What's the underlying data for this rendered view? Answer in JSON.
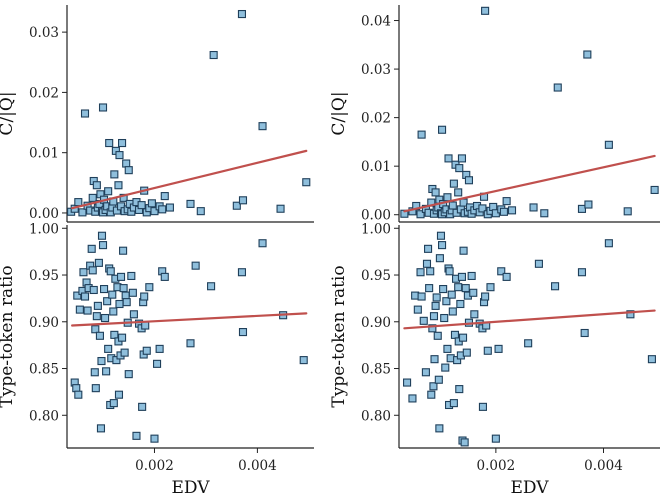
{
  "colors": {
    "marker_fill": "#8fbfdc",
    "marker_edge": "#1f3f5a",
    "fit_line": "#c0504d",
    "axis": "#222222"
  },
  "chart_data": [
    {
      "id": "top-left",
      "type": "scatter",
      "xlabel": "",
      "ylabel": "C/|Q|",
      "xlim": [
        0.0003,
        0.0051
      ],
      "ylim": [
        -0.0015,
        0.0345
      ],
      "xticks": [],
      "xtick_labels": [],
      "yticks": [
        0.0,
        0.01,
        0.02,
        0.03
      ],
      "ytick_labels": [
        "0.00",
        "0.01",
        "0.02",
        "0.03"
      ],
      "points": [
        [
          0.00038,
          0.0002
        ],
        [
          0.00045,
          0.0007
        ],
        [
          0.00052,
          0.0018
        ],
        [
          0.0006,
          0.0001
        ],
        [
          0.00065,
          0.0165
        ],
        [
          0.0007,
          0.0012
        ],
        [
          0.00075,
          0.0004
        ],
        [
          0.0008,
          0.0025
        ],
        [
          0.00082,
          0.0053
        ],
        [
          0.00085,
          0.0002
        ],
        [
          0.00088,
          0.0046
        ],
        [
          0.0009,
          0.0009
        ],
        [
          0.00093,
          0.0015
        ],
        [
          0.00095,
          0.0031
        ],
        [
          0.00098,
          0.0003
        ],
        [
          0.001,
          0.0001
        ],
        [
          0.001,
          0.0175
        ],
        [
          0.00102,
          0.0022
        ],
        [
          0.00105,
          0.0005
        ],
        [
          0.00108,
          0.0011
        ],
        [
          0.0011,
          0.0036
        ],
        [
          0.00112,
          0.0116
        ],
        [
          0.00115,
          0.0001
        ],
        [
          0.00118,
          0.0009
        ],
        [
          0.0012,
          0.0019
        ],
        [
          0.00122,
          0.0064
        ],
        [
          0.00125,
          0.0103
        ],
        [
          0.00127,
          0.0004
        ],
        [
          0.0013,
          0.0046
        ],
        [
          0.00132,
          0.0096
        ],
        [
          0.00135,
          0.0011
        ],
        [
          0.00137,
          0.0116
        ],
        [
          0.0014,
          0.0025
        ],
        [
          0.00142,
          0.0003
        ],
        [
          0.00145,
          0.0082
        ],
        [
          0.00148,
          0.0006
        ],
        [
          0.0015,
          0.0071
        ],
        [
          0.00152,
          0.0015
        ],
        [
          0.00155,
          0.0002
        ],
        [
          0.0016,
          0.0009
        ],
        [
          0.00165,
          0.0018
        ],
        [
          0.0017,
          0.0005
        ],
        [
          0.00175,
          0.0013
        ],
        [
          0.0018,
          0.0037
        ],
        [
          0.00185,
          0.0001
        ],
        [
          0.0019,
          0.0008
        ],
        [
          0.00195,
          0.0016
        ],
        [
          0.002,
          0.0003
        ],
        [
          0.0021,
          0.0011
        ],
        [
          0.00215,
          0.0006
        ],
        [
          0.0022,
          0.0028
        ],
        [
          0.0023,
          0.0009
        ],
        [
          0.0027,
          0.0015
        ],
        [
          0.0029,
          0.0003
        ],
        [
          0.00315,
          0.0262
        ],
        [
          0.0036,
          0.0012
        ],
        [
          0.0037,
          0.033
        ],
        [
          0.00372,
          0.0021
        ],
        [
          0.0041,
          0.0144
        ],
        [
          0.00445,
          0.0007
        ],
        [
          0.00495,
          0.0051
        ]
      ],
      "fit": {
        "x": [
          0.0004,
          0.00495
        ],
        "y": [
          0.0008,
          0.0103
        ]
      }
    },
    {
      "id": "top-right",
      "type": "scatter",
      "xlabel": "",
      "ylabel": "C/|Q|",
      "xlim": [
        0.0002,
        0.00505
      ],
      "ylim": [
        -0.0015,
        0.0432
      ],
      "xticks": [],
      "xtick_labels": [],
      "yticks": [
        0.0,
        0.01,
        0.02,
        0.03,
        0.04
      ],
      "ytick_labels": [
        "0.00",
        "0.01",
        "0.02",
        "0.03",
        "0.04"
      ],
      "points": [
        [
          0.0003,
          0.0002
        ],
        [
          0.00045,
          0.0007
        ],
        [
          0.00052,
          0.0018
        ],
        [
          0.0006,
          0.0001
        ],
        [
          0.00062,
          0.0165
        ],
        [
          0.0007,
          0.0012
        ],
        [
          0.00075,
          0.0004
        ],
        [
          0.0008,
          0.0025
        ],
        [
          0.00082,
          0.0053
        ],
        [
          0.00085,
          0.0002
        ],
        [
          0.00088,
          0.0046
        ],
        [
          0.0009,
          0.0009
        ],
        [
          0.00093,
          0.0015
        ],
        [
          0.00095,
          0.0031
        ],
        [
          0.00098,
          0.0003
        ],
        [
          0.001,
          0.0001
        ],
        [
          0.001,
          0.0175
        ],
        [
          0.00102,
          0.0022
        ],
        [
          0.00105,
          0.0005
        ],
        [
          0.00108,
          0.0011
        ],
        [
          0.0011,
          0.0036
        ],
        [
          0.00112,
          0.0116
        ],
        [
          0.00115,
          0.0001
        ],
        [
          0.00118,
          0.0009
        ],
        [
          0.0012,
          0.0019
        ],
        [
          0.00122,
          0.0064
        ],
        [
          0.00125,
          0.0103
        ],
        [
          0.00127,
          0.0004
        ],
        [
          0.0013,
          0.0046
        ],
        [
          0.00132,
          0.0096
        ],
        [
          0.00135,
          0.0011
        ],
        [
          0.00137,
          0.0116
        ],
        [
          0.0014,
          0.0025
        ],
        [
          0.00142,
          0.0003
        ],
        [
          0.00145,
          0.0082
        ],
        [
          0.00148,
          0.0006
        ],
        [
          0.0015,
          0.0071
        ],
        [
          0.00152,
          0.0015
        ],
        [
          0.00155,
          0.0002
        ],
        [
          0.0016,
          0.0009
        ],
        [
          0.00165,
          0.0018
        ],
        [
          0.0017,
          0.0005
        ],
        [
          0.00175,
          0.0013
        ],
        [
          0.00178,
          0.0037
        ],
        [
          0.0018,
          0.042
        ],
        [
          0.00185,
          0.0001
        ],
        [
          0.0019,
          0.0008
        ],
        [
          0.00195,
          0.0016
        ],
        [
          0.002,
          0.0003
        ],
        [
          0.0021,
          0.0011
        ],
        [
          0.00215,
          0.0006
        ],
        [
          0.0022,
          0.0028
        ],
        [
          0.0023,
          0.0009
        ],
        [
          0.0027,
          0.0015
        ],
        [
          0.0029,
          0.0003
        ],
        [
          0.00315,
          0.0262
        ],
        [
          0.0036,
          0.0012
        ],
        [
          0.0037,
          0.033
        ],
        [
          0.00372,
          0.0021
        ],
        [
          0.0041,
          0.0144
        ],
        [
          0.00445,
          0.0007
        ],
        [
          0.00495,
          0.0051
        ]
      ],
      "fit": {
        "x": [
          0.0003,
          0.00495
        ],
        "y": [
          0.0007,
          0.0121
        ]
      }
    },
    {
      "id": "bottom-left",
      "type": "scatter",
      "xlabel": "EDV",
      "ylabel": "Type-token ratio",
      "xlim": [
        0.0003,
        0.0051
      ],
      "ylim": [
        0.765,
        1.0035
      ],
      "xticks": [
        0.002,
        0.004
      ],
      "xtick_labels": [
        "0.002",
        "0.004"
      ],
      "yticks": [
        0.8,
        0.85,
        0.9,
        0.95,
        1.0
      ],
      "ytick_labels": [
        "0.80",
        "0.85",
        "0.90",
        "0.95",
        "1.00"
      ],
      "points": [
        [
          0.00045,
          0.835
        ],
        [
          0.00048,
          0.829
        ],
        [
          0.0005,
          0.928
        ],
        [
          0.00052,
          0.822
        ],
        [
          0.00055,
          0.913
        ],
        [
          0.0006,
          0.933
        ],
        [
          0.00062,
          0.953
        ],
        [
          0.00065,
          0.927
        ],
        [
          0.00068,
          0.942
        ],
        [
          0.0007,
          0.912
        ],
        [
          0.00072,
          0.936
        ],
        [
          0.00075,
          0.96
        ],
        [
          0.00078,
          0.978
        ],
        [
          0.0008,
          0.955
        ],
        [
          0.00082,
          0.934
        ],
        [
          0.00084,
          0.846
        ],
        [
          0.00085,
          0.892
        ],
        [
          0.00086,
          0.829
        ],
        [
          0.00088,
          0.906
        ],
        [
          0.0009,
          0.917
        ],
        [
          0.00092,
          0.963
        ],
        [
          0.00094,
          0.885
        ],
        [
          0.00096,
          0.786
        ],
        [
          0.00097,
          0.858
        ],
        [
          0.00098,
          0.992
        ],
        [
          0.001,
          0.982
        ],
        [
          0.00102,
          0.935
        ],
        [
          0.00104,
          0.904
        ],
        [
          0.00106,
          0.847
        ],
        [
          0.00108,
          0.922
        ],
        [
          0.0011,
          0.871
        ],
        [
          0.00112,
          0.957
        ],
        [
          0.00114,
          0.811
        ],
        [
          0.00115,
          0.954
        ],
        [
          0.00116,
          0.861
        ],
        [
          0.00118,
          0.929
        ],
        [
          0.0012,
          0.911
        ],
        [
          0.00121,
          0.813
        ],
        [
          0.00122,
          0.886
        ],
        [
          0.00124,
          0.946
        ],
        [
          0.00126,
          0.859
        ],
        [
          0.00128,
          0.937
        ],
        [
          0.0013,
          0.879
        ],
        [
          0.00131,
          0.822
        ],
        [
          0.00132,
          0.919
        ],
        [
          0.00134,
          0.864
        ],
        [
          0.00135,
          0.948
        ],
        [
          0.00137,
          0.883
        ],
        [
          0.00139,
          0.976
        ],
        [
          0.0014,
          0.936
        ],
        [
          0.00142,
          0.867
        ],
        [
          0.00144,
          0.928
        ],
        [
          0.00146,
          0.921
        ],
        [
          0.00148,
          0.899
        ],
        [
          0.0015,
          0.844
        ],
        [
          0.00155,
          0.949
        ],
        [
          0.00158,
          0.931
        ],
        [
          0.0016,
          0.908
        ],
        [
          0.00165,
          0.778
        ],
        [
          0.0017,
          0.898
        ],
        [
          0.00175,
          0.893
        ],
        [
          0.00176,
          0.809
        ],
        [
          0.00178,
          0.921
        ],
        [
          0.00179,
          0.865
        ],
        [
          0.0018,
          0.927
        ],
        [
          0.00182,
          0.896
        ],
        [
          0.00185,
          0.869
        ],
        [
          0.0019,
          0.937
        ],
        [
          0.002,
          0.775
        ],
        [
          0.00205,
          0.855
        ],
        [
          0.0021,
          0.871
        ],
        [
          0.00215,
          0.954
        ],
        [
          0.0022,
          0.948
        ],
        [
          0.0027,
          0.877
        ],
        [
          0.0028,
          0.96
        ],
        [
          0.0031,
          0.938
        ],
        [
          0.0037,
          0.953
        ],
        [
          0.00372,
          0.889
        ],
        [
          0.0041,
          0.984
        ],
        [
          0.0045,
          0.907
        ],
        [
          0.0049,
          0.859
        ]
      ],
      "fit": {
        "x": [
          0.0004,
          0.00495
        ],
        "y": [
          0.896,
          0.909
        ]
      }
    },
    {
      "id": "bottom-right",
      "type": "scatter",
      "xlabel": "EDV",
      "ylabel": "Type-token ratio",
      "xlim": [
        0.0002,
        0.00505
      ],
      "ylim": [
        0.765,
        1.0035
      ],
      "xticks": [
        0.002,
        0.004
      ],
      "xtick_labels": [
        "0.002",
        "0.004"
      ],
      "yticks": [
        0.8,
        0.85,
        0.9,
        0.95,
        1.0
      ],
      "ytick_labels": [
        "0.80",
        "0.85",
        "0.90",
        "0.95",
        "1.00"
      ],
      "points": [
        [
          0.00035,
          0.835
        ],
        [
          0.00045,
          0.818
        ],
        [
          0.0005,
          0.928
        ],
        [
          0.00055,
          0.913
        ],
        [
          0.0006,
          0.953
        ],
        [
          0.00062,
          0.927
        ],
        [
          0.00066,
          0.901
        ],
        [
          0.0007,
          0.846
        ],
        [
          0.00072,
          0.962
        ],
        [
          0.00074,
          0.978
        ],
        [
          0.00076,
          0.936
        ],
        [
          0.00078,
          0.954
        ],
        [
          0.0008,
          0.822
        ],
        [
          0.00082,
          0.893
        ],
        [
          0.00084,
          0.831
        ],
        [
          0.00085,
          0.906
        ],
        [
          0.00086,
          0.86
        ],
        [
          0.00088,
          0.917
        ],
        [
          0.0009,
          0.926
        ],
        [
          0.00092,
          0.885
        ],
        [
          0.00094,
          0.838
        ],
        [
          0.00095,
          0.786
        ],
        [
          0.00096,
          0.968
        ],
        [
          0.00098,
          0.992
        ],
        [
          0.001,
          0.982
        ],
        [
          0.00102,
          0.935
        ],
        [
          0.00104,
          0.904
        ],
        [
          0.00106,
          0.851
        ],
        [
          0.00108,
          0.922
        ],
        [
          0.0011,
          0.871
        ],
        [
          0.00112,
          0.957
        ],
        [
          0.00113,
          0.811
        ],
        [
          0.00114,
          0.954
        ],
        [
          0.00116,
          0.861
        ],
        [
          0.00118,
          0.929
        ],
        [
          0.0012,
          0.911
        ],
        [
          0.00122,
          0.813
        ],
        [
          0.00124,
          0.886
        ],
        [
          0.00126,
          0.946
        ],
        [
          0.00128,
          0.859
        ],
        [
          0.0013,
          0.937
        ],
        [
          0.00131,
          0.879
        ],
        [
          0.00132,
          0.828
        ],
        [
          0.00134,
          0.919
        ],
        [
          0.00135,
          0.864
        ],
        [
          0.00137,
          0.948
        ],
        [
          0.00138,
          0.773
        ],
        [
          0.00139,
          0.883
        ],
        [
          0.0014,
          0.976
        ],
        [
          0.00142,
          0.771
        ],
        [
          0.00144,
          0.936
        ],
        [
          0.00146,
          0.867
        ],
        [
          0.00148,
          0.928
        ],
        [
          0.0015,
          0.899
        ],
        [
          0.00155,
          0.949
        ],
        [
          0.00158,
          0.931
        ],
        [
          0.0016,
          0.908
        ],
        [
          0.0017,
          0.898
        ],
        [
          0.00175,
          0.893
        ],
        [
          0.00176,
          0.809
        ],
        [
          0.00178,
          0.921
        ],
        [
          0.0018,
          0.927
        ],
        [
          0.00182,
          0.896
        ],
        [
          0.00185,
          0.869
        ],
        [
          0.0019,
          0.937
        ],
        [
          0.002,
          0.775
        ],
        [
          0.00205,
          0.871
        ],
        [
          0.0021,
          0.954
        ],
        [
          0.0022,
          0.948
        ],
        [
          0.0026,
          0.877
        ],
        [
          0.0028,
          0.962
        ],
        [
          0.0031,
          0.938
        ],
        [
          0.0036,
          0.953
        ],
        [
          0.00365,
          0.888
        ],
        [
          0.0041,
          0.984
        ],
        [
          0.0045,
          0.908
        ],
        [
          0.0049,
          0.86
        ]
      ],
      "fit": {
        "x": [
          0.0003,
          0.00495
        ],
        "y": [
          0.893,
          0.912
        ]
      }
    }
  ]
}
